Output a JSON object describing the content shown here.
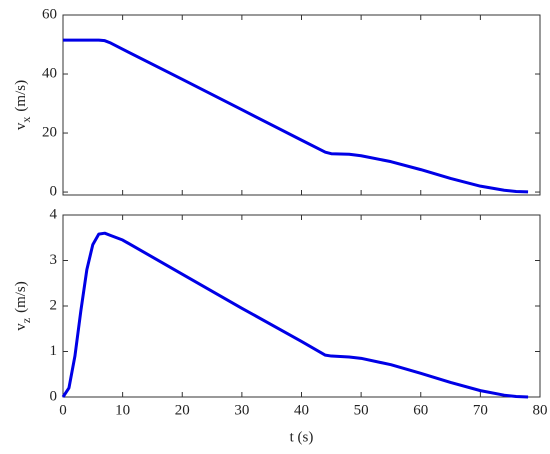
{
  "chart_data": [
    {
      "type": "line",
      "ylabel_base": "v",
      "ylabel_subscript": "x",
      "ylabel_units": "(m/s)",
      "xlim": [
        0,
        80
      ],
      "xticks": [
        0,
        10,
        20,
        30,
        40,
        50,
        60,
        70,
        80
      ],
      "show_xtick_labels": false,
      "ylim": [
        -1,
        60
      ],
      "yticks": [
        0,
        20,
        40,
        60
      ],
      "x": [
        0,
        6,
        7,
        8,
        10,
        20,
        30,
        40,
        44,
        45,
        48,
        50,
        55,
        60,
        65,
        70,
        74,
        76,
        78
      ],
      "series": [
        {
          "color": "#0000e6",
          "values": [
            51.5,
            51.5,
            51.3,
            50.5,
            48.4,
            38.2,
            27.9,
            17.6,
            13.5,
            13,
            12.8,
            12.3,
            10.3,
            7.6,
            4.6,
            2.0,
            0.6,
            0.2,
            0.05
          ]
        }
      ]
    },
    {
      "type": "line",
      "ylabel_base": "v",
      "ylabel_subscript": "z",
      "ylabel_units": "(m/s)",
      "xlabel": "t (s)",
      "xlim": [
        0,
        80
      ],
      "xticks": [
        0,
        10,
        20,
        30,
        40,
        50,
        60,
        70,
        80
      ],
      "show_xtick_labels": true,
      "ylim": [
        0,
        4
      ],
      "yticks": [
        0,
        1,
        2,
        3,
        4
      ],
      "x": [
        0,
        1,
        2,
        3,
        4,
        5,
        6,
        7,
        8,
        10,
        20,
        30,
        40,
        44,
        45,
        48,
        50,
        55,
        60,
        65,
        70,
        74,
        76,
        78
      ],
      "series": [
        {
          "color": "#0000e6",
          "values": [
            0,
            0.2,
            0.9,
            1.9,
            2.8,
            3.35,
            3.58,
            3.6,
            3.55,
            3.45,
            2.7,
            1.95,
            1.22,
            0.92,
            0.9,
            0.88,
            0.85,
            0.71,
            0.52,
            0.32,
            0.14,
            0.04,
            0.01,
            0
          ]
        }
      ]
    }
  ]
}
